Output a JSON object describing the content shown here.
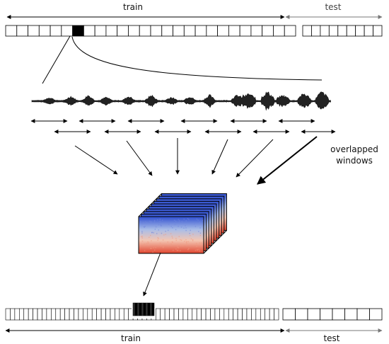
{
  "top": {
    "train_label": "train",
    "test_label": "test",
    "train_cells": 26,
    "test_cells": 9,
    "highlight_index": 6
  },
  "bottom": {
    "train_label": "train",
    "test_label": "test",
    "train_cells": 60,
    "test_cells": 8,
    "highlight_count": 5
  },
  "annotation": {
    "line1": "overlapped",
    "line2": "windows"
  },
  "windows": {
    "upper_row": 6,
    "lower_row": 6
  },
  "spectrogram": {
    "frames": 10
  },
  "colors": {
    "ink": "#000000",
    "test_ink": "#777777",
    "spec_blue": "#3a5bd9",
    "spec_red": "#e34a33"
  }
}
